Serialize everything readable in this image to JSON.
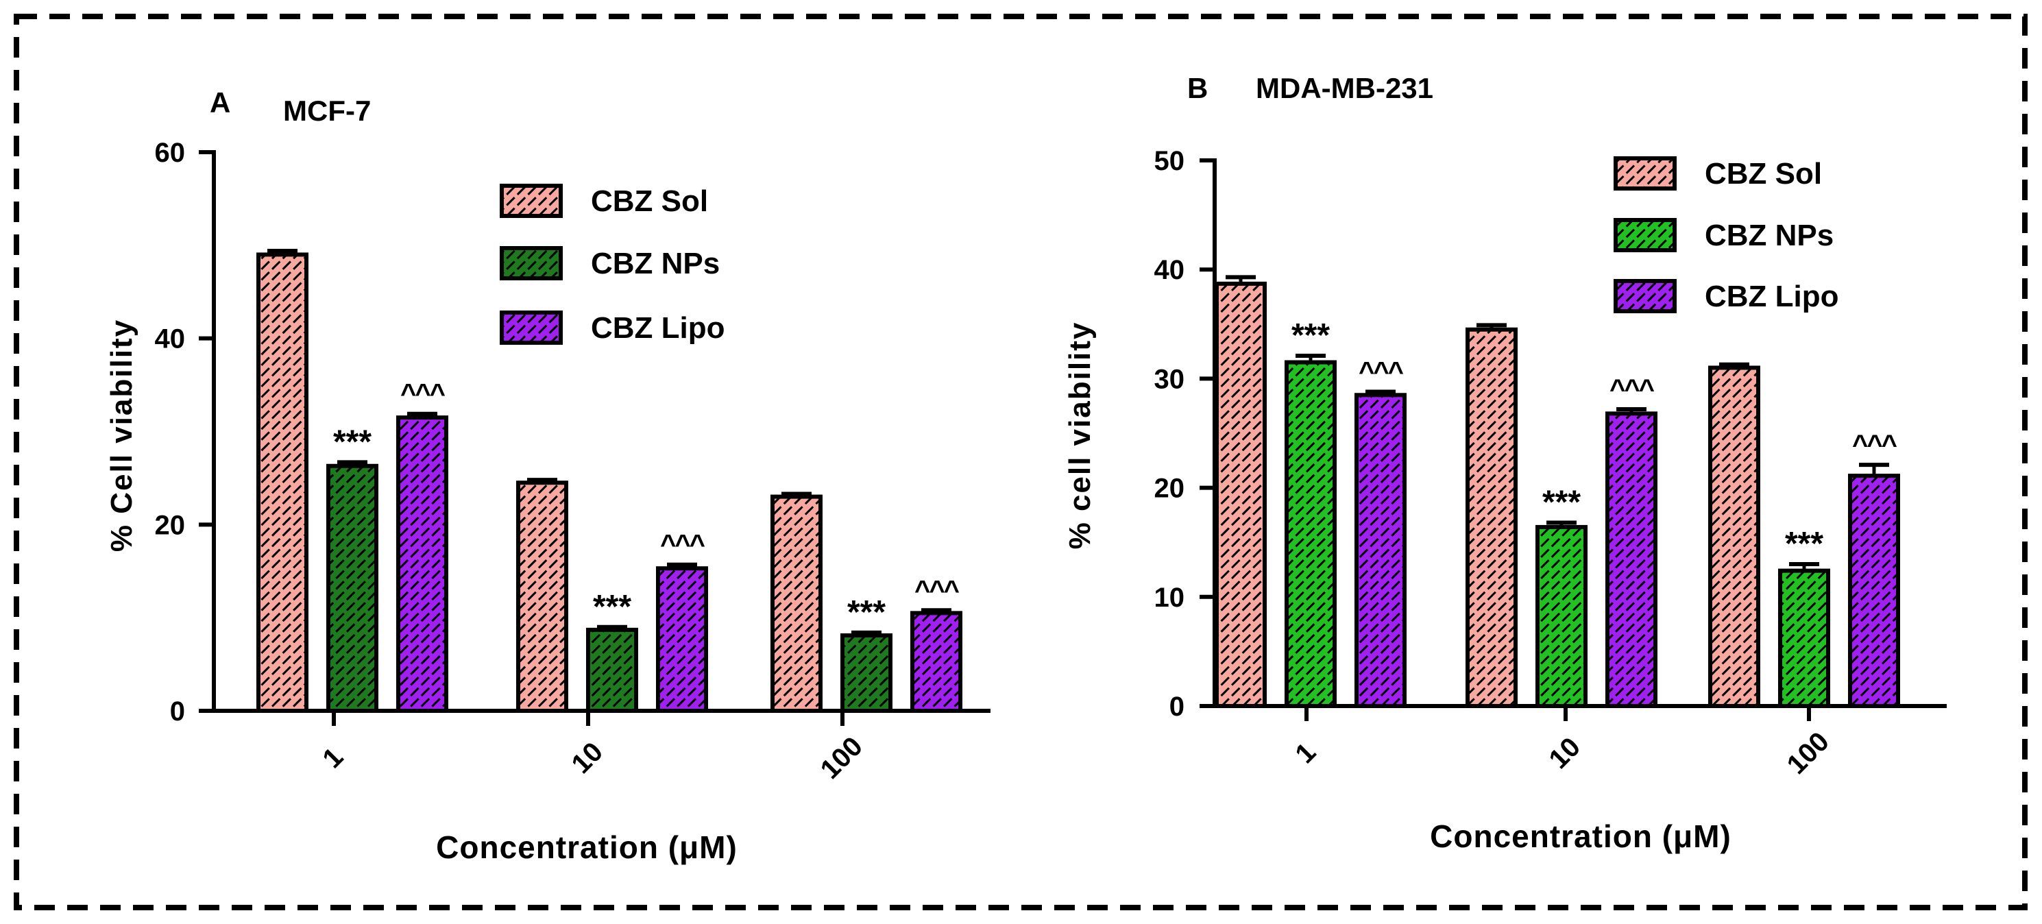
{
  "colors": {
    "sol": "#f7a9a0",
    "np_a": "#1f7a1f",
    "np_b": "#22c022",
    "lipo": "#a020f0",
    "frame": "#000000"
  },
  "chart_data": [
    {
      "type": "bar",
      "panel_label": "A",
      "title": "MCF-7",
      "xlabel": "Concentration (μM)",
      "ylabel": "% Cell viability",
      "ylim": [
        0,
        60
      ],
      "yticks": [
        "0",
        "20",
        "40",
        "60"
      ],
      "categories": [
        "1",
        "10",
        "100"
      ],
      "legend_position": "top-center",
      "series": [
        {
          "name": "CBZ Sol",
          "values": [
            49,
            24.5,
            23
          ],
          "errors": [
            0.4,
            0.3,
            0.3
          ],
          "annotations": [
            "",
            "",
            ""
          ],
          "color_key": "sol"
        },
        {
          "name": "CBZ NPs",
          "values": [
            26.3,
            8.7,
            8.1
          ],
          "errors": [
            0.4,
            0.3,
            0.3
          ],
          "annotations": [
            "***",
            "***",
            "***"
          ],
          "color_key": "np_a"
        },
        {
          "name": "CBZ Lipo",
          "values": [
            31.5,
            15.3,
            10.5
          ],
          "errors": [
            0.4,
            0.4,
            0.3
          ],
          "annotations": [
            "^^^",
            "^^^",
            "^^^"
          ],
          "color_key": "lipo"
        }
      ]
    },
    {
      "type": "bar",
      "panel_label": "B",
      "title": "MDA-MB-231",
      "xlabel": "Concentration (μM)",
      "ylabel": "% cell viability",
      "ylim": [
        0,
        50
      ],
      "yticks": [
        "0",
        "10",
        "20",
        "30",
        "40",
        "50"
      ],
      "categories": [
        "1",
        "10",
        "100"
      ],
      "legend_position": "top-center",
      "series": [
        {
          "name": "CBZ Sol",
          "values": [
            38.7,
            34.5,
            31
          ],
          "errors": [
            0.6,
            0.4,
            0.3
          ],
          "annotations": [
            "",
            "",
            ""
          ],
          "color_key": "sol"
        },
        {
          "name": "CBZ NPs",
          "values": [
            31.5,
            16.4,
            12.4
          ],
          "errors": [
            0.6,
            0.4,
            0.6
          ],
          "annotations": [
            "***",
            "***",
            "***"
          ],
          "color_key": "np_b"
        },
        {
          "name": "CBZ Lipo",
          "values": [
            28.5,
            26.8,
            21.1
          ],
          "errors": [
            0.3,
            0.4,
            1.0
          ],
          "annotations": [
            "^^^",
            "^^^",
            "^^^"
          ],
          "color_key": "lipo"
        }
      ]
    }
  ]
}
